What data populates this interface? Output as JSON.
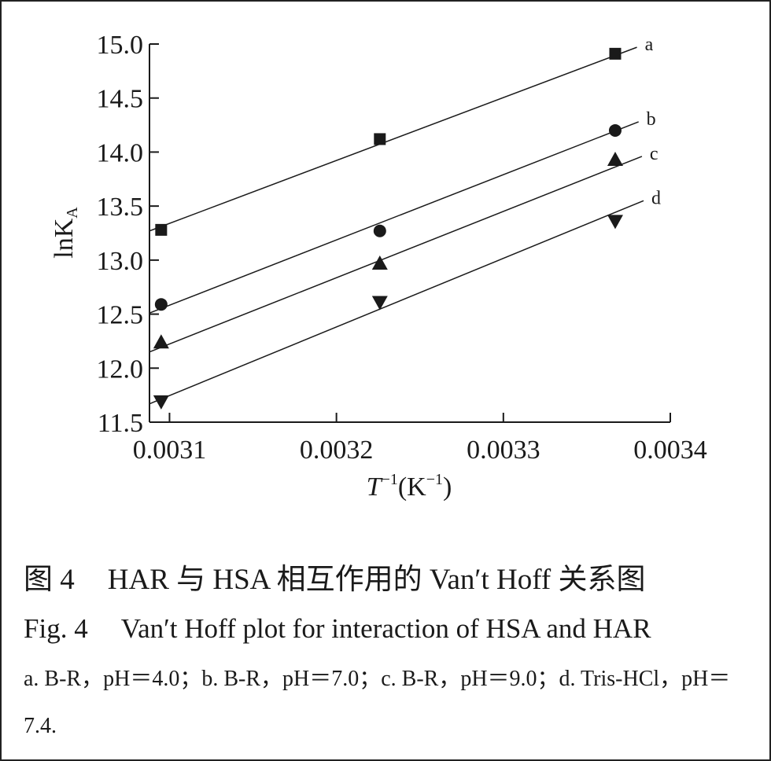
{
  "chart_data": {
    "type": "scatter",
    "x_ticks": [
      "0.0031",
      "0.0032",
      "0.0033",
      "0.0034"
    ],
    "x_tick_values": [
      0.0031,
      0.0032,
      0.0033,
      0.0034
    ],
    "y_ticks": [
      "11.5",
      "12.0",
      "12.5",
      "13.0",
      "13.5",
      "14.0",
      "14.5",
      "15.0"
    ],
    "y_tick_values": [
      11.5,
      12.0,
      12.5,
      13.0,
      13.5,
      14.0,
      14.5,
      15.0
    ],
    "xlim": [
      0.003088,
      0.0034
    ],
    "ylim": [
      11.5,
      15.0
    ],
    "xlabel": {
      "main": "T",
      "sup1": "−1",
      "unit_open": "(K",
      "sup2": "−1",
      "unit_close": ")"
    },
    "ylabel": {
      "main": "lnK",
      "sub": "A"
    },
    "x": [
      0.003095,
      0.003226,
      0.003367
    ],
    "series": [
      {
        "name": "a",
        "marker": "square",
        "values": [
          13.28,
          14.12,
          14.91
        ],
        "fit": [
          [
            0.003088,
            13.27
          ],
          [
            0.00338,
            14.97
          ]
        ]
      },
      {
        "name": "b",
        "marker": "circle",
        "values": [
          12.59,
          13.27,
          14.2
        ],
        "fit": [
          [
            0.003088,
            12.51
          ],
          [
            0.003381,
            14.28
          ]
        ]
      },
      {
        "name": "c",
        "marker": "triangle-up",
        "values": [
          12.24,
          12.97,
          13.93
        ],
        "fit": [
          [
            0.003088,
            12.15
          ],
          [
            0.003383,
            13.96
          ]
        ]
      },
      {
        "name": "d",
        "marker": "triangle-down",
        "values": [
          11.69,
          12.61,
          13.36
        ],
        "fit": [
          [
            0.003088,
            11.67
          ],
          [
            0.003384,
            13.55
          ]
        ]
      }
    ],
    "grid": false,
    "legend": "line-end labels"
  },
  "caption": {
    "cn_figno": "图 4",
    "cn_title": "HAR 与 HSA 相互作用的 Van′t Hoff 关系图",
    "en_figno": "Fig. 4",
    "en_title": "Van′t Hoff plot for interaction of HSA and HAR",
    "note": "a. B-R，pH＝4.0；b. B-R，pH＝7.0；c. B-R，pH＝9.0；d. Tris-HCl，pH＝7.4."
  },
  "colors": {
    "ink": "#1a1a1a",
    "background": "#ffffff"
  }
}
